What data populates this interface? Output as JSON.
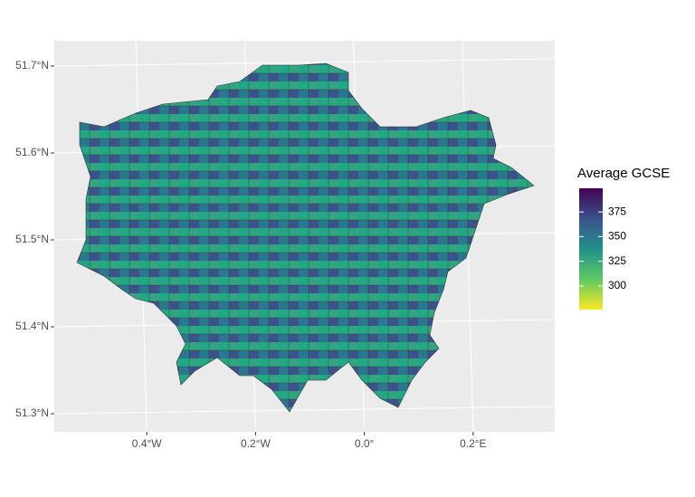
{
  "chart_data": {
    "type": "map",
    "xlim": [
      -0.56,
      0.36
    ],
    "xticks": [
      {
        "value": -0.4,
        "label": "0.4°W"
      },
      {
        "value": -0.2,
        "label": "0.2°W"
      },
      {
        "value": 0,
        "label": "0.0°"
      },
      {
        "value": 0.2,
        "label": "0.2°E"
      }
    ],
    "ylim": [
      51.275,
      51.725
    ],
    "yticks": [
      {
        "value": 51.3,
        "label": "51.3°N"
      },
      {
        "value": 51.4,
        "label": "51.4°N"
      },
      {
        "value": 51.5,
        "label": "51.5°N"
      },
      {
        "value": 51.6,
        "label": "51.6°N"
      },
      {
        "value": 51.7,
        "label": "51.7°N"
      }
    ],
    "grid": true,
    "legend": {
      "title": "Average GCSE",
      "lim": [
        276,
        399
      ],
      "ticks": [
        300,
        325,
        350,
        375
      ]
    }
  }
}
